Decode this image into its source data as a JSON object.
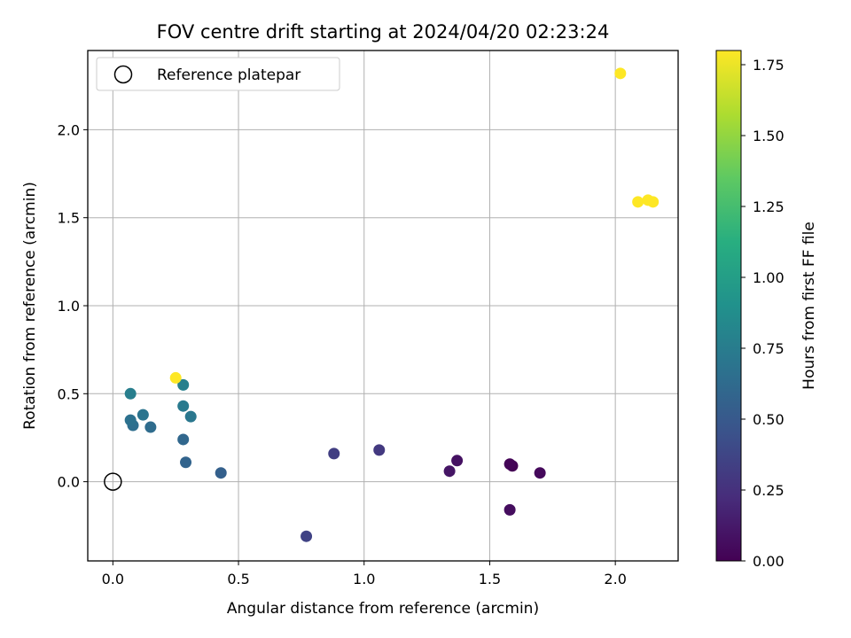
{
  "chart_data": {
    "type": "scatter",
    "title": "FOV centre drift starting at 2024/04/20 02:23:24",
    "xlabel": "Angular distance from reference (arcmin)",
    "ylabel": "Rotation from reference (arcmin)",
    "xlim": [
      -0.1,
      2.25
    ],
    "ylim": [
      -0.45,
      2.45
    ],
    "xticks": [
      0.0,
      0.5,
      1.0,
      1.5,
      2.0
    ],
    "xtick_labels": [
      "0.0",
      "0.5",
      "1.0",
      "1.5",
      "2.0"
    ],
    "yticks": [
      0.0,
      0.5,
      1.0,
      1.5,
      2.0
    ],
    "ytick_labels": [
      "0.0",
      "0.5",
      "1.0",
      "1.5",
      "2.0"
    ],
    "grid": true,
    "legend": {
      "position": "top-left",
      "entries": [
        "Reference platepar"
      ]
    },
    "reference_point": {
      "x": 0.0,
      "y": 0.0
    },
    "colorbar": {
      "label": "Hours from first FF file",
      "colormap": "viridis",
      "range": [
        0.0,
        1.8
      ],
      "ticks": [
        0.0,
        0.25,
        0.5,
        0.75,
        1.0,
        1.25,
        1.5,
        1.75
      ],
      "tick_labels": [
        "0.00",
        "0.25",
        "0.50",
        "0.75",
        "1.00",
        "1.25",
        "1.50",
        "1.75"
      ]
    },
    "points": [
      {
        "x": 1.59,
        "y": 0.09,
        "hours": 0.0
      },
      {
        "x": 1.58,
        "y": 0.1,
        "hours": 0.02
      },
      {
        "x": 1.7,
        "y": 0.05,
        "hours": 0.04
      },
      {
        "x": 1.58,
        "y": -0.16,
        "hours": 0.06
      },
      {
        "x": 1.37,
        "y": 0.12,
        "hours": 0.08
      },
      {
        "x": 1.34,
        "y": 0.06,
        "hours": 0.1
      },
      {
        "x": 1.06,
        "y": 0.18,
        "hours": 0.3
      },
      {
        "x": 0.88,
        "y": 0.16,
        "hours": 0.33
      },
      {
        "x": 0.77,
        "y": -0.31,
        "hours": 0.36
      },
      {
        "x": 0.43,
        "y": 0.05,
        "hours": 0.55
      },
      {
        "x": 0.29,
        "y": 0.11,
        "hours": 0.58
      },
      {
        "x": 0.28,
        "y": 0.24,
        "hours": 0.6
      },
      {
        "x": 0.15,
        "y": 0.31,
        "hours": 0.63
      },
      {
        "x": 0.08,
        "y": 0.32,
        "hours": 0.65
      },
      {
        "x": 0.07,
        "y": 0.35,
        "hours": 0.67
      },
      {
        "x": 0.12,
        "y": 0.38,
        "hours": 0.69
      },
      {
        "x": 0.31,
        "y": 0.37,
        "hours": 0.71
      },
      {
        "x": 0.28,
        "y": 0.43,
        "hours": 0.73
      },
      {
        "x": 0.07,
        "y": 0.5,
        "hours": 0.76
      },
      {
        "x": 0.28,
        "y": 0.55,
        "hours": 0.78
      },
      {
        "x": 0.25,
        "y": 0.59,
        "hours": 1.8
      },
      {
        "x": 2.09,
        "y": 1.59,
        "hours": 1.8
      },
      {
        "x": 2.13,
        "y": 1.6,
        "hours": 1.8
      },
      {
        "x": 2.15,
        "y": 1.59,
        "hours": 1.8
      },
      {
        "x": 2.02,
        "y": 2.32,
        "hours": 1.8
      }
    ]
  }
}
